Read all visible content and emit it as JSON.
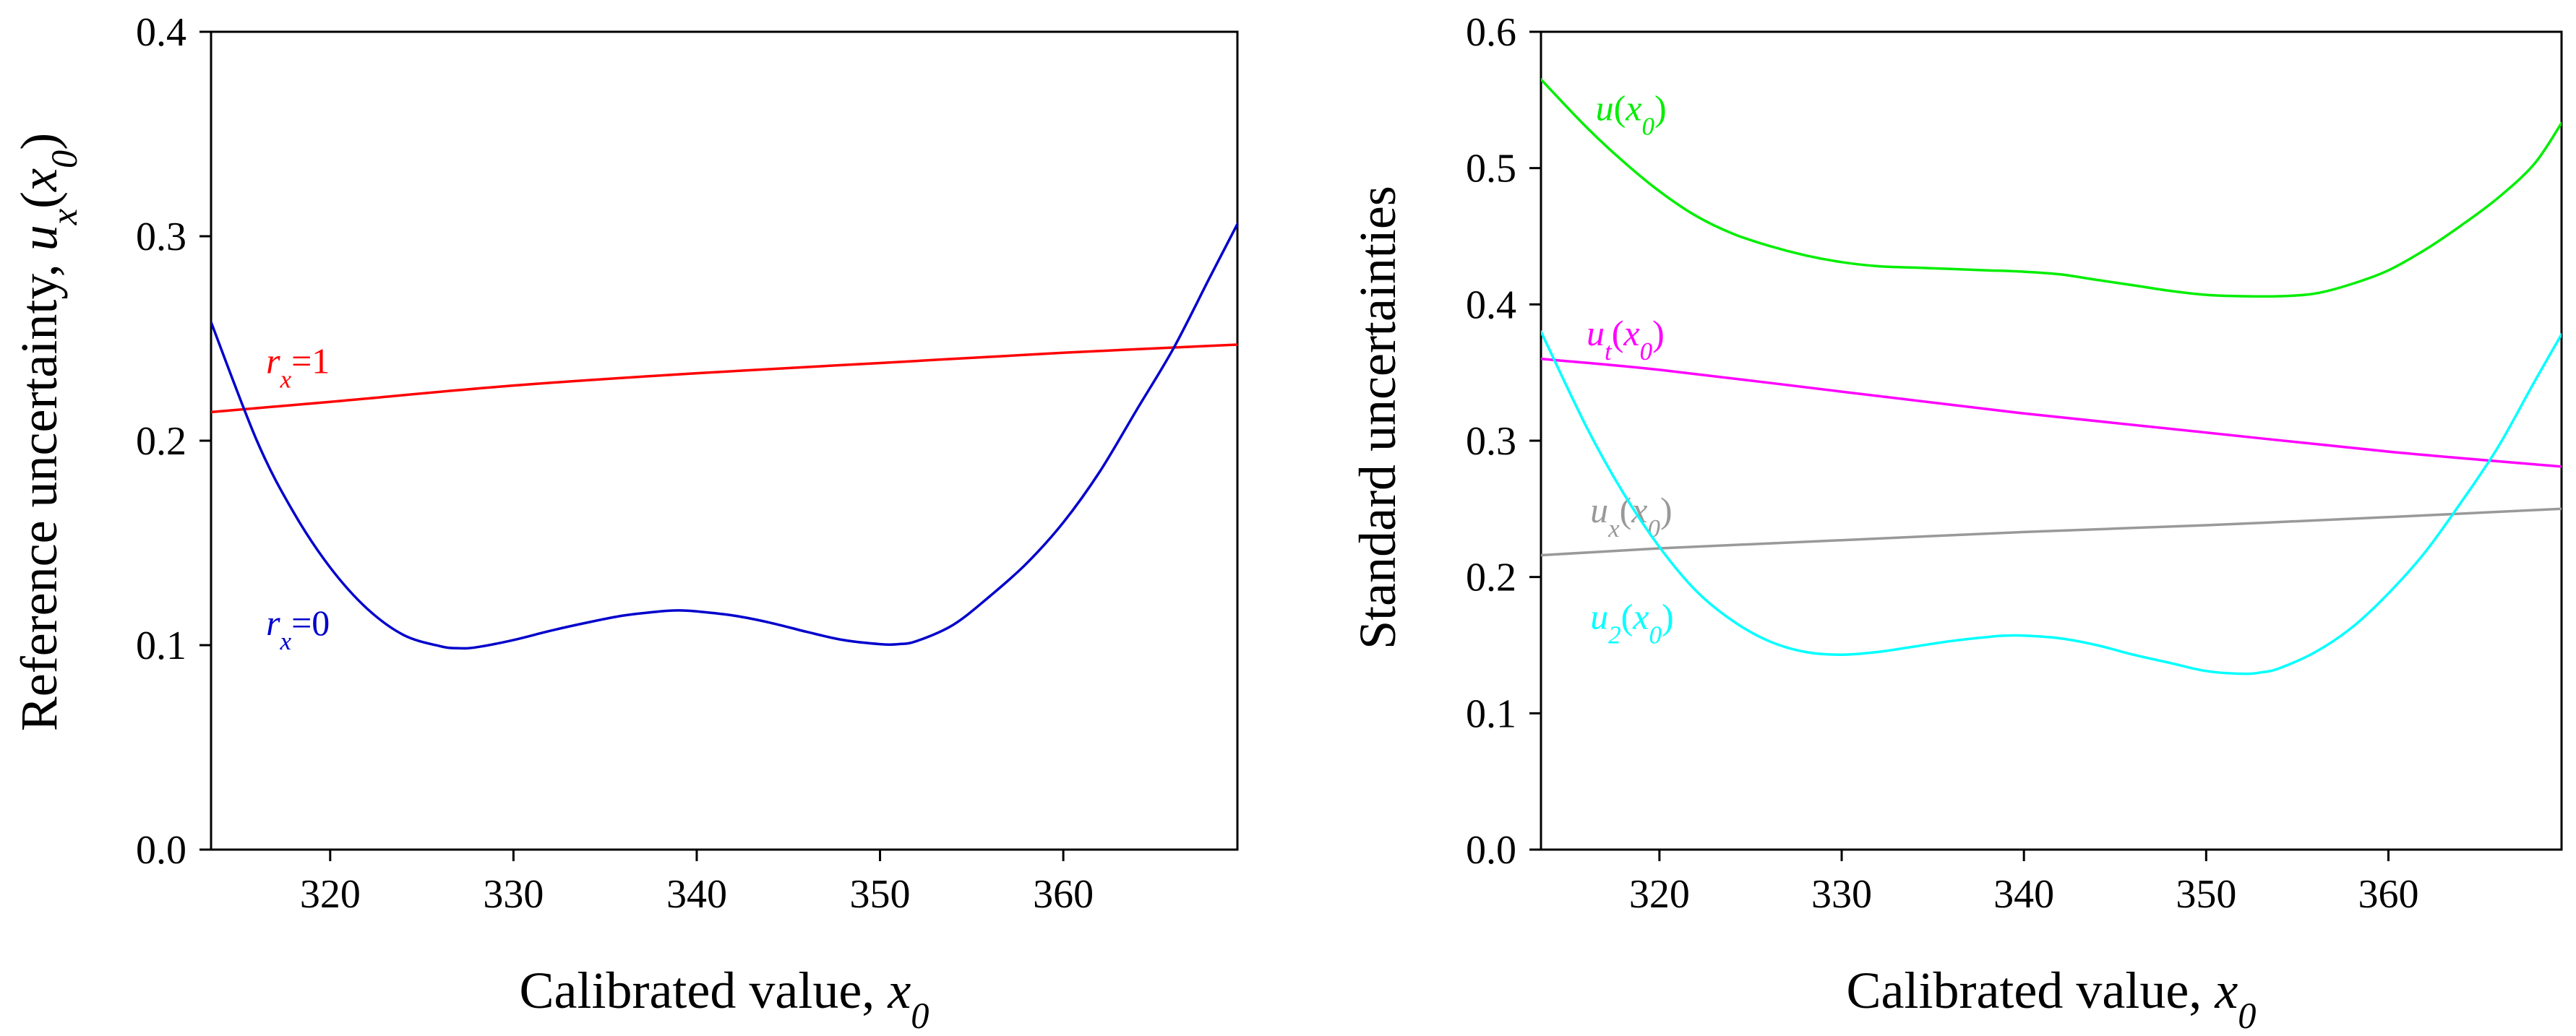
{
  "chart_data": [
    {
      "type": "line",
      "xlabel": {
        "main": "Calibrated value, ",
        "var": "x",
        "sub": "0"
      },
      "ylabel": {
        "main": "Reference uncertainty, ",
        "var": "u",
        "sub": "x",
        "open": "(",
        "var2": "x",
        "sub2": "0",
        "close": ")"
      },
      "xlim": [
        313.5,
        369.5
      ],
      "ylim": [
        0.0,
        0.4
      ],
      "xticks": [
        320,
        330,
        340,
        350,
        360
      ],
      "xtick_labels": [
        "320",
        "330",
        "340",
        "350",
        "360"
      ],
      "yticks": [
        0.0,
        0.1,
        0.2,
        0.3,
        0.4
      ],
      "ytick_labels": [
        "0.0",
        "0.1",
        "0.2",
        "0.3",
        "0.4"
      ],
      "grid": false,
      "legend": "none",
      "series": [
        {
          "color": "#ff0000",
          "label": {
            "var": "r",
            "sub": "x",
            "rest": "=1",
            "at": [
              316.5,
              0.233
            ]
          },
          "x": [
            313.5,
            320,
            330,
            340,
            350,
            360,
            369.5
          ],
          "y": [
            0.214,
            0.219,
            0.227,
            0.233,
            0.238,
            0.243,
            0.247
          ]
        },
        {
          "color": "#0000cc",
          "label": {
            "var": "r",
            "sub": "x",
            "rest": "=0",
            "at": [
              316.5,
              0.105
            ]
          },
          "x": [
            313.5,
            316,
            318,
            320,
            322,
            324,
            326,
            327,
            328,
            330,
            332,
            334,
            336,
            338,
            339,
            340,
            342,
            344,
            346,
            348,
            350,
            351,
            352,
            354,
            356,
            358,
            360,
            362,
            364,
            366,
            368,
            369.5
          ],
          "y": [
            0.258,
            0.2,
            0.165,
            0.138,
            0.118,
            0.105,
            0.0995,
            0.0985,
            0.099,
            0.1025,
            0.107,
            0.111,
            0.1145,
            0.1165,
            0.117,
            0.1165,
            0.1145,
            0.111,
            0.1065,
            0.1025,
            0.1005,
            0.1005,
            0.102,
            0.11,
            0.124,
            0.14,
            0.16,
            0.185,
            0.215,
            0.245,
            0.28,
            0.306
          ]
        }
      ]
    },
    {
      "type": "line",
      "xlabel": {
        "main": "Calibrated value, ",
        "var": "x",
        "sub": "0"
      },
      "ylabel": {
        "main": "Standard uncertainties"
      },
      "xlim": [
        313.5,
        369.5
      ],
      "ylim": [
        0.0,
        0.6
      ],
      "xticks": [
        320,
        330,
        340,
        350,
        360
      ],
      "xtick_labels": [
        "320",
        "330",
        "340",
        "350",
        "360"
      ],
      "yticks": [
        0.0,
        0.1,
        0.2,
        0.3,
        0.4,
        0.5,
        0.6
      ],
      "ytick_labels": [
        "0.0",
        "0.1",
        "0.2",
        "0.3",
        "0.4",
        "0.5",
        "0.6"
      ],
      "grid": false,
      "legend": "none",
      "series": [
        {
          "color": "#00ee00",
          "label": {
            "var": "u",
            "sub": "",
            "rest": "(",
            "var2": "x",
            "sub2": "0",
            "close": ")",
            "at": [
              316.5,
              0.535
            ]
          },
          "x": [
            313.5,
            316,
            318,
            320,
            322,
            324,
            326,
            328,
            330,
            332,
            334,
            336,
            338,
            340,
            342,
            344,
            346,
            348,
            350,
            352,
            354,
            356,
            358,
            360,
            362,
            364,
            366,
            368,
            369.5
          ],
          "y": [
            0.565,
            0.53,
            0.505,
            0.483,
            0.465,
            0.452,
            0.443,
            0.436,
            0.431,
            0.428,
            0.427,
            0.426,
            0.425,
            0.424,
            0.422,
            0.418,
            0.414,
            0.41,
            0.407,
            0.406,
            0.406,
            0.408,
            0.415,
            0.425,
            0.44,
            0.458,
            0.478,
            0.503,
            0.533
          ]
        },
        {
          "color": "#ff00ff",
          "label": {
            "var": "u",
            "sub": "t",
            "rest": "(",
            "var2": "x",
            "sub2": "0",
            "close": ")",
            "at": [
              316,
              0.37
            ]
          },
          "x": [
            313.5,
            320,
            330,
            340,
            350,
            360,
            369.5
          ],
          "y": [
            0.36,
            0.352,
            0.336,
            0.32,
            0.306,
            0.292,
            0.281
          ]
        },
        {
          "color": "#999999",
          "label": {
            "var": "u",
            "sub": "x",
            "rest": "(",
            "var2": "x",
            "sub2": "0",
            "close": ")",
            "at": [
              316.2,
              0.24
            ]
          },
          "x": [
            313.5,
            320,
            330,
            340,
            350,
            360,
            369.5
          ],
          "y": [
            0.216,
            0.221,
            0.227,
            0.233,
            0.238,
            0.244,
            0.25
          ]
        },
        {
          "color": "#00ffff",
          "label": {
            "var": "u",
            "sub": "2",
            "rest": "(",
            "var2": "x",
            "sub2": "0",
            "close": ")",
            "at": [
              316.2,
              0.162
            ]
          },
          "x": [
            313.5,
            316,
            318,
            320,
            322,
            324,
            326,
            328,
            330,
            332,
            334,
            336,
            338,
            339,
            340,
            342,
            344,
            346,
            348,
            350,
            352,
            353,
            354,
            356,
            358,
            360,
            362,
            364,
            366,
            368,
            369.5
          ],
          "y": [
            0.38,
            0.31,
            0.262,
            0.222,
            0.19,
            0.168,
            0.153,
            0.145,
            0.143,
            0.145,
            0.149,
            0.153,
            0.156,
            0.157,
            0.157,
            0.155,
            0.15,
            0.143,
            0.137,
            0.131,
            0.129,
            0.13,
            0.133,
            0.145,
            0.163,
            0.188,
            0.218,
            0.255,
            0.295,
            0.343,
            0.378
          ]
        }
      ]
    }
  ]
}
